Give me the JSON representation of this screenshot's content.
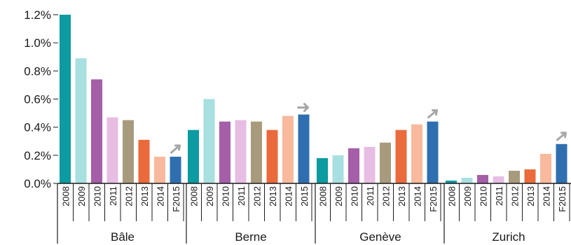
{
  "chart_data": {
    "type": "bar",
    "title": "",
    "xlabel": "",
    "ylabel": "",
    "ylim": [
      0,
      0.012
    ],
    "yticks": [
      {
        "value": 0.0,
        "label": "0.0%"
      },
      {
        "value": 0.002,
        "label": "0.2%"
      },
      {
        "value": 0.004,
        "label": "0.4%"
      },
      {
        "value": 0.006,
        "label": "0.6%"
      },
      {
        "value": 0.008,
        "label": "0.8%"
      },
      {
        "value": 0.01,
        "label": "1.0%"
      },
      {
        "value": 0.012,
        "label": "1.2%"
      }
    ],
    "grid": false,
    "legend": "none",
    "years": [
      "2008",
      "2009",
      "2010",
      "2011",
      "2012",
      "2013",
      "2014",
      "F2015"
    ],
    "year_labels_per_group": [
      [
        "2008",
        "2009",
        "2010",
        "2011",
        "2012",
        "2013",
        "2014",
        "F2015"
      ],
      [
        "2008",
        "2009",
        "2010",
        "2011",
        "2012",
        "2013",
        "2014",
        "2015"
      ],
      [
        "2008",
        "2009",
        "2010",
        "2011",
        "2012",
        "2013",
        "2014",
        "F2015"
      ],
      [
        "2008",
        "2009",
        "2010",
        "2011",
        "2012",
        "2013",
        "2014",
        "F2015"
      ]
    ],
    "colors": [
      "#0b9ba0",
      "#a8dfe0",
      "#a55ea8",
      "#e7bde3",
      "#a89b7d",
      "#ea6a3c",
      "#f8b99d",
      "#2f6fb0"
    ],
    "groups": [
      {
        "name": "Bâle",
        "values": [
          0.012,
          0.0089,
          0.0074,
          0.0047,
          0.0045,
          0.0031,
          0.0019,
          0.0019
        ]
      },
      {
        "name": "Berne",
        "values": [
          0.0038,
          0.006,
          0.0044,
          0.0045,
          0.0044,
          0.0038,
          0.0048,
          0.0049
        ]
      },
      {
        "name": "Genève",
        "values": [
          0.0018,
          0.002,
          0.0025,
          0.0026,
          0.0029,
          0.0038,
          0.0042,
          0.0044
        ]
      },
      {
        "name": "Zurich",
        "values": [
          0.0002,
          0.0004,
          0.0006,
          0.0005,
          0.0009,
          0.001,
          0.0021,
          0.0028
        ]
      }
    ],
    "forecast_trend": [
      "up",
      "right",
      "up",
      "up"
    ]
  }
}
